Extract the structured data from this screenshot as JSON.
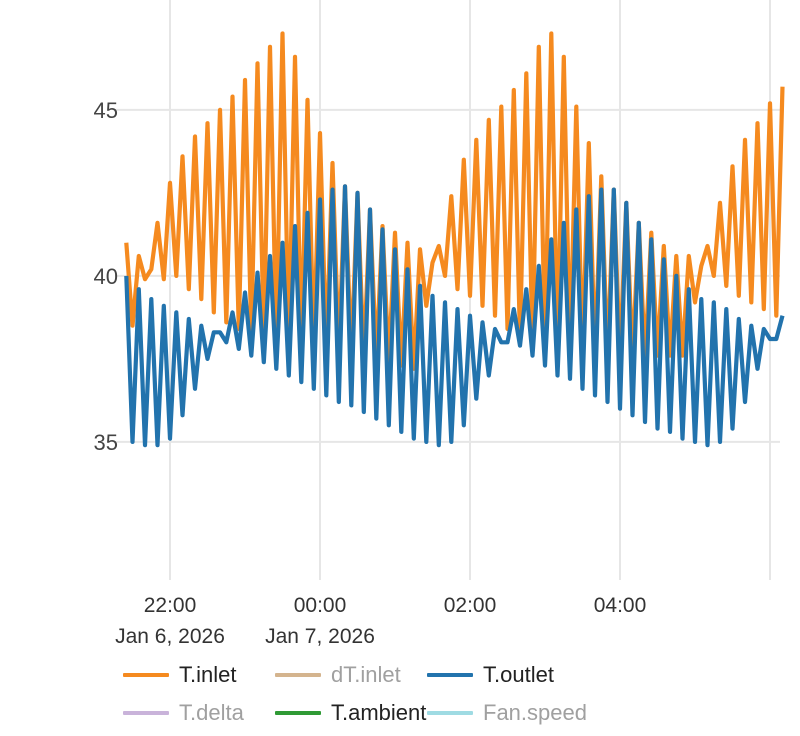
{
  "chart_data": {
    "type": "line",
    "x_start": "2026-01-06 21:25",
    "x_interval_minutes": 5,
    "xlim": [
      "2026-01-06 21:20",
      "2026-01-07 06:16"
    ],
    "ylim": [
      30.84,
      48.31
    ],
    "grid": true,
    "legend_position": "bottom",
    "x_ticks": [
      {
        "time": "22:00",
        "date": "Jan 6, 2026",
        "minutes_from_2200": 0
      },
      {
        "time": "00:00",
        "date": "Jan 7, 2026",
        "minutes_from_2200": 120
      },
      {
        "time": "02:00",
        "date": "",
        "minutes_from_2200": 240
      },
      {
        "time": "04:00",
        "date": "",
        "minutes_from_2200": 360
      },
      {
        "time": "",
        "date": "",
        "minutes_from_2200": 480
      }
    ],
    "y_ticks": [
      "35",
      "40",
      "45"
    ],
    "series": [
      {
        "name": "T.inlet",
        "color": "#f58a1f",
        "visible": true,
        "values": [
          41.0,
          38.5,
          40.6,
          39.9,
          40.2,
          41.6,
          39.9,
          42.8,
          40.0,
          43.6,
          39.6,
          44.2,
          39.3,
          44.6,
          38.9,
          45.0,
          38.6,
          45.4,
          38.4,
          45.9,
          38.2,
          46.4,
          38.1,
          46.9,
          38.0,
          47.3,
          37.9,
          46.6,
          37.8,
          45.3,
          37.8,
          44.3,
          37.7,
          43.4,
          37.7,
          42.7,
          37.6,
          42.5,
          37.5,
          42.0,
          37.5,
          41.5,
          37.4,
          41.3,
          37.3,
          41.0,
          37.2,
          40.8,
          39.1,
          40.4,
          40.9,
          40.0,
          42.4,
          39.6,
          43.5,
          39.4,
          44.1,
          39.1,
          44.7,
          38.8,
          45.1,
          38.4,
          45.6,
          38.1,
          46.1,
          37.9,
          46.9,
          37.8,
          47.3,
          37.7,
          46.6,
          37.6,
          45.1,
          37.6,
          44.0,
          37.5,
          43.0,
          37.5,
          42.6,
          37.5,
          42.2,
          37.5,
          41.6,
          37.5,
          41.3,
          37.6,
          40.9,
          37.6,
          40.6,
          37.6,
          40.6,
          39.2,
          40.3,
          40.9,
          40.0,
          42.2,
          39.7,
          43.3,
          39.4,
          44.1,
          39.2,
          44.6,
          39.0,
          45.2,
          38.8,
          45.7
        ]
      },
      {
        "name": "dT.inlet",
        "color": "#d4b48e",
        "visible": false,
        "values": []
      },
      {
        "name": "T.outlet",
        "color": "#2273ad",
        "visible": true,
        "values": [
          40.0,
          35.0,
          39.6,
          34.9,
          39.3,
          34.9,
          39.1,
          35.1,
          38.9,
          35.8,
          38.7,
          36.6,
          38.5,
          37.5,
          38.3,
          38.3,
          38.0,
          38.9,
          37.8,
          39.5,
          37.6,
          40.1,
          37.4,
          40.6,
          37.2,
          41.0,
          37.0,
          41.5,
          36.8,
          41.9,
          36.6,
          42.3,
          36.4,
          42.6,
          36.2,
          42.7,
          36.1,
          42.5,
          35.9,
          42.0,
          35.7,
          41.4,
          35.5,
          40.8,
          35.3,
          40.2,
          35.1,
          39.7,
          35.0,
          39.4,
          34.9,
          39.2,
          35.0,
          39.0,
          35.5,
          38.8,
          36.3,
          38.6,
          37.0,
          38.4,
          38.0,
          38.0,
          39.0,
          37.9,
          39.6,
          37.6,
          40.3,
          37.3,
          41.1,
          37.0,
          41.6,
          36.9,
          42.0,
          36.6,
          42.4,
          36.4,
          42.6,
          36.2,
          42.6,
          36.0,
          42.2,
          35.8,
          41.6,
          35.6,
          41.1,
          35.4,
          40.5,
          35.3,
          40.0,
          35.1,
          39.6,
          35.0,
          39.3,
          34.9,
          39.2,
          35.0,
          39.0,
          35.4,
          38.7,
          36.2,
          38.5,
          37.2,
          38.4,
          38.1,
          38.1,
          38.8
        ]
      },
      {
        "name": "T.delta",
        "color": "#c9b3da",
        "visible": false,
        "values": []
      },
      {
        "name": "T.ambient",
        "color": "#2f9a35",
        "visible": true,
        "values": []
      },
      {
        "name": "Fan.speed",
        "color": "#9fdbe3",
        "visible": false,
        "values": []
      }
    ]
  }
}
